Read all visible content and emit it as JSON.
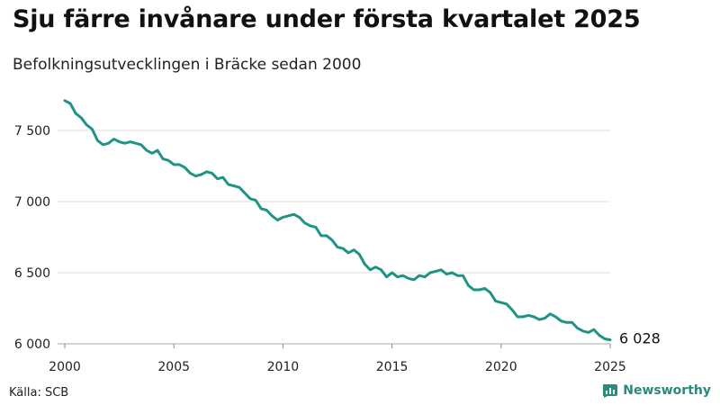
{
  "header": {
    "title": "Sju färre invånare under första kvartalet 2025",
    "subtitle": "Befolkningsutvecklingen i Bräcke sedan 2000"
  },
  "footer": {
    "source": "Källa: SCB",
    "brand": "Newsworthy"
  },
  "colors": {
    "line": "#1f9484",
    "grid": "#dddddd",
    "brand": "#2b8a7a"
  },
  "chart_data": {
    "type": "line",
    "title": "Sju färre invånare under första kvartalet 2025",
    "subtitle": "Befolkningsutvecklingen i Bräcke sedan 2000",
    "xlabel": "",
    "ylabel": "",
    "xlim": [
      2000,
      2025
    ],
    "ylim": [
      6000,
      7800
    ],
    "x_ticks": [
      2000,
      2005,
      2010,
      2015,
      2020,
      2025
    ],
    "x_tick_labels": [
      "2000",
      "2005",
      "2010",
      "2015",
      "2020",
      "2025"
    ],
    "y_ticks": [
      6000,
      6500,
      7000,
      7500
    ],
    "y_tick_labels": [
      "6 000",
      "6 500",
      "7 000",
      "7 500"
    ],
    "grid": "horizontal",
    "legend": "none",
    "end_label": "6 028",
    "series": [
      {
        "x": [
          2000.0,
          2000.25,
          2000.5,
          2000.75,
          2001.0,
          2001.25,
          2001.5,
          2001.75,
          2002.0,
          2002.25,
          2002.5,
          2002.75,
          2003.0,
          2003.25,
          2003.5,
          2003.75,
          2004.0,
          2004.25,
          2004.5,
          2004.75,
          2005.0,
          2005.25,
          2005.5,
          2005.75,
          2006.0,
          2006.25,
          2006.5,
          2006.75,
          2007.0,
          2007.25,
          2007.5,
          2007.75,
          2008.0,
          2008.25,
          2008.5,
          2008.75,
          2009.0,
          2009.25,
          2009.5,
          2009.75,
          2010.0,
          2010.25,
          2010.5,
          2010.75,
          2011.0,
          2011.25,
          2011.5,
          2011.75,
          2012.0,
          2012.25,
          2012.5,
          2012.75,
          2013.0,
          2013.25,
          2013.5,
          2013.75,
          2014.0,
          2014.25,
          2014.5,
          2014.75,
          2015.0,
          2015.25,
          2015.5,
          2015.75,
          2016.0,
          2016.25,
          2016.5,
          2016.75,
          2017.0,
          2017.25,
          2017.5,
          2017.75,
          2018.0,
          2018.25,
          2018.5,
          2018.75,
          2019.0,
          2019.25,
          2019.5,
          2019.75,
          2020.0,
          2020.25,
          2020.5,
          2020.75,
          2021.0,
          2021.25,
          2021.5,
          2021.75,
          2022.0,
          2022.25,
          2022.5,
          2022.75,
          2023.0,
          2023.25,
          2023.5,
          2023.75,
          2024.0,
          2024.25,
          2024.5,
          2024.75,
          2025.0
        ],
        "values": [
          7710,
          7690,
          7620,
          7590,
          7540,
          7510,
          7430,
          7400,
          7410,
          7440,
          7420,
          7410,
          7420,
          7410,
          7400,
          7360,
          7340,
          7360,
          7300,
          7290,
          7260,
          7260,
          7240,
          7200,
          7180,
          7190,
          7210,
          7200,
          7160,
          7170,
          7120,
          7110,
          7100,
          7060,
          7020,
          7010,
          6950,
          6940,
          6900,
          6870,
          6890,
          6900,
          6910,
          6890,
          6850,
          6830,
          6820,
          6760,
          6760,
          6730,
          6680,
          6670,
          6640,
          6660,
          6630,
          6560,
          6520,
          6540,
          6520,
          6470,
          6500,
          6470,
          6480,
          6460,
          6450,
          6480,
          6470,
          6500,
          6510,
          6520,
          6490,
          6500,
          6480,
          6480,
          6410,
          6380,
          6380,
          6390,
          6360,
          6300,
          6290,
          6280,
          6240,
          6190,
          6190,
          6200,
          6190,
          6170,
          6180,
          6210,
          6190,
          6160,
          6150,
          6150,
          6110,
          6090,
          6080,
          6100,
          6060,
          6035,
          6028
        ]
      }
    ]
  }
}
